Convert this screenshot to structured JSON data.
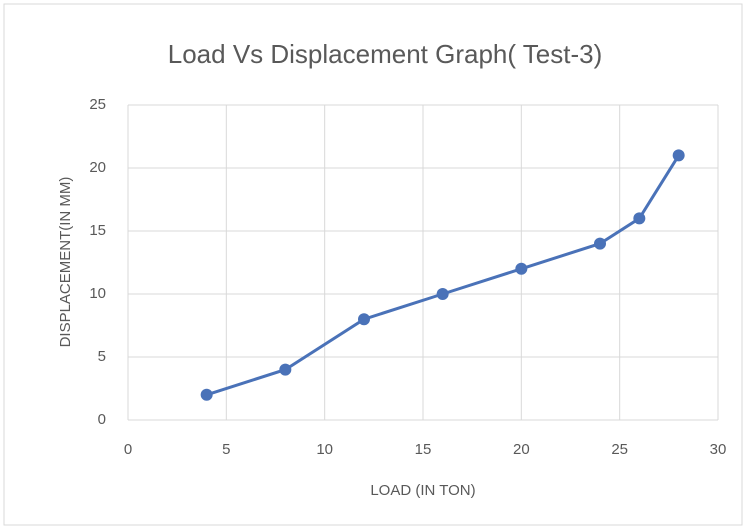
{
  "chart_data": {
    "type": "scatter_line",
    "title": "Load Vs Displacement Graph( Test-3)",
    "x_label": "LOAD (IN TON)",
    "y_label": "DISPLACEMENT(IN MM)",
    "series": [
      {
        "color": "#4a72b8",
        "x": [
          4,
          8,
          12,
          16,
          20,
          24,
          26,
          28
        ],
        "values": [
          2,
          4,
          8,
          10,
          12,
          14,
          16,
          21
        ]
      }
    ],
    "xlim": [
      0,
      30
    ],
    "xticks": [
      0,
      5,
      10,
      15,
      20,
      25,
      30
    ],
    "ylim": [
      0,
      25
    ],
    "yticks": [
      0,
      5,
      10,
      15,
      20,
      25
    ],
    "grid": true
  }
}
